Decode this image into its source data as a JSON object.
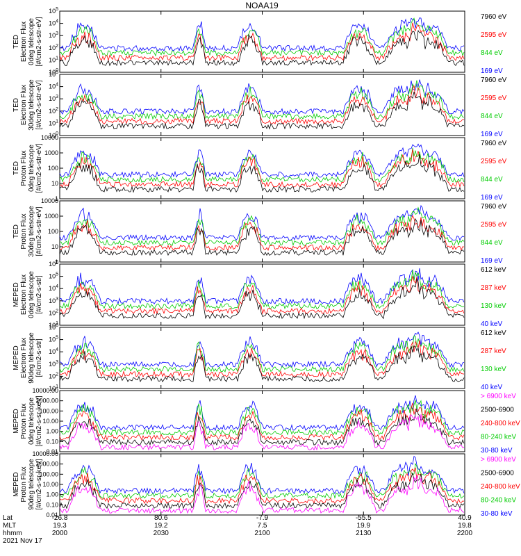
{
  "title": "NOAA19",
  "footer": {
    "row_labels": [
      "Lat",
      "MLT",
      "hhmm",
      "2021 Nov 17"
    ],
    "ticks": [
      {
        "lat": "-26.8",
        "mlt": "19.3",
        "hhmm": "2000"
      },
      {
        "lat": "80.6",
        "mlt": "19.2",
        "hhmm": "2030"
      },
      {
        "lat": "-7.9",
        "mlt": "7.5",
        "hhmm": "2100"
      },
      {
        "lat": "-55.5",
        "mlt": "19.9",
        "hhmm": "2130"
      },
      {
        "lat": "40.9",
        "mlt": "19.8",
        "hhmm": "2200"
      }
    ]
  },
  "chart_data": [
    {
      "type": "line",
      "x_range": [
        "2000",
        "2200"
      ],
      "scale": "log",
      "ylabel": [
        "TED",
        "Electron Flux",
        "0deg telescope",
        "[#/cm2-s-str-eV]"
      ],
      "yticks": [
        "10^0",
        "10^1",
        "10^2",
        "10^3",
        "10^4",
        "10^5"
      ],
      "ylim_exp": [
        0,
        5
      ],
      "series": [
        {
          "name": "7960 eV",
          "color": "#000000"
        },
        {
          "name": "2595 eV",
          "color": "#ff0000"
        },
        {
          "name": "844 eV",
          "color": "#00cc00"
        },
        {
          "name": "169 eV",
          "color": "#0000ff"
        }
      ]
    },
    {
      "type": "line",
      "x_range": [
        "2000",
        "2200"
      ],
      "scale": "log",
      "ylabel": [
        "TED",
        "Electron Flux",
        "30deg telescope",
        "[#/cm2-s-str-eV]"
      ],
      "yticks": [
        "10^0",
        "10^1",
        "10^2",
        "10^3",
        "10^4",
        "10^5"
      ],
      "ylim_exp": [
        0,
        5
      ],
      "series": [
        {
          "name": "7960 eV",
          "color": "#000000"
        },
        {
          "name": "2595 eV",
          "color": "#ff0000"
        },
        {
          "name": "844 eV",
          "color": "#00cc00"
        },
        {
          "name": "169 eV",
          "color": "#0000ff"
        }
      ]
    },
    {
      "type": "line",
      "x_range": [
        "2000",
        "2200"
      ],
      "scale": "log",
      "ylabel": [
        "TED",
        "Proton Flux",
        "0deg telescope",
        "[#/cm2-s-str-eV]"
      ],
      "yticks": [
        "1",
        "10",
        "100",
        "1000",
        "10000"
      ],
      "ylim_exp": [
        0,
        4
      ],
      "series": [
        {
          "name": "7960 eV",
          "color": "#000000"
        },
        {
          "name": "2595 eV",
          "color": "#ff0000"
        },
        {
          "name": "844 eV",
          "color": "#00cc00"
        },
        {
          "name": "169 eV",
          "color": "#0000ff"
        }
      ]
    },
    {
      "type": "line",
      "x_range": [
        "2000",
        "2200"
      ],
      "scale": "log",
      "ylabel": [
        "TED",
        "Proton Flux",
        "30deg telescope",
        "[#/cm2-s-str-eV]"
      ],
      "yticks": [
        "1",
        "10",
        "100",
        "1000",
        "10000"
      ],
      "ylim_exp": [
        0,
        4
      ],
      "series": [
        {
          "name": "7960 eV",
          "color": "#000000"
        },
        {
          "name": "2595 eV",
          "color": "#ff0000"
        },
        {
          "name": "844 eV",
          "color": "#00cc00"
        },
        {
          "name": "169 eV",
          "color": "#0000ff"
        }
      ]
    },
    {
      "type": "line",
      "x_range": [
        "2000",
        "2200"
      ],
      "scale": "log",
      "ylabel": [
        "MEPED",
        "Electron Flux",
        "0deg telescope",
        "[#/cm2-s-str]"
      ],
      "yticks": [
        "10^1",
        "10^2",
        "10^3",
        "10^4",
        "10^5",
        "10^6"
      ],
      "ylim_exp": [
        1,
        6
      ],
      "series": [
        {
          "name": "612 keV",
          "color": "#000000"
        },
        {
          "name": "287 keV",
          "color": "#ff0000"
        },
        {
          "name": "130 keV",
          "color": "#00cc00"
        },
        {
          "name": "40 keV",
          "color": "#0000ff"
        }
      ]
    },
    {
      "type": "line",
      "x_range": [
        "2000",
        "2200"
      ],
      "scale": "log",
      "ylabel": [
        "MEPED",
        "Electron Flux",
        "90deg telescope",
        "[#/cm2-s-str]"
      ],
      "yticks": [
        "10^1",
        "10^2",
        "10^3",
        "10^4",
        "10^5",
        "10^6"
      ],
      "ylim_exp": [
        1,
        6
      ],
      "series": [
        {
          "name": "612 keV",
          "color": "#000000"
        },
        {
          "name": "287 keV",
          "color": "#ff0000"
        },
        {
          "name": "130 keV",
          "color": "#00cc00"
        },
        {
          "name": "40 keV",
          "color": "#0000ff"
        }
      ]
    },
    {
      "type": "line",
      "x_range": [
        "2000",
        "2200"
      ],
      "scale": "log",
      "ylabel": [
        "MEPED",
        "Proton Flux",
        "0deg telescope",
        "[#/cm2-s-sr-keV]"
      ],
      "yticks": [
        "0.01",
        "0.10",
        "1.00",
        "10.00",
        "100.00",
        "1000.00",
        "10000.00"
      ],
      "ylim_exp": [
        -2,
        4
      ],
      "series": [
        {
          "name": "> 6900 keV",
          "color": "#ff00ff"
        },
        {
          "name": "2500-6900",
          "color": "#000000"
        },
        {
          "name": "240-800 keV",
          "color": "#ff0000"
        },
        {
          "name": "80-240 keV",
          "color": "#00cc00"
        },
        {
          "name": "30-80 keV",
          "color": "#0000ff"
        }
      ]
    },
    {
      "type": "line",
      "x_range": [
        "2000",
        "2200"
      ],
      "scale": "log",
      "ylabel": [
        "MEPED",
        "Proton Flux",
        "90deg telescope",
        "[#/cm2-s-sr-keV]"
      ],
      "yticks": [
        "0.01",
        "0.10",
        "1.00",
        "10.00",
        "100.00",
        "1000.00",
        "10000.00"
      ],
      "ylim_exp": [
        -2,
        4
      ],
      "series": [
        {
          "name": "> 6900 keV",
          "color": "#ff00ff"
        },
        {
          "name": "2500-6900",
          "color": "#000000"
        },
        {
          "name": "240-800 keV",
          "color": "#ff0000"
        },
        {
          "name": "80-240 keV",
          "color": "#00cc00"
        },
        {
          "name": "30-80 keV",
          "color": "#0000ff"
        }
      ]
    }
  ]
}
